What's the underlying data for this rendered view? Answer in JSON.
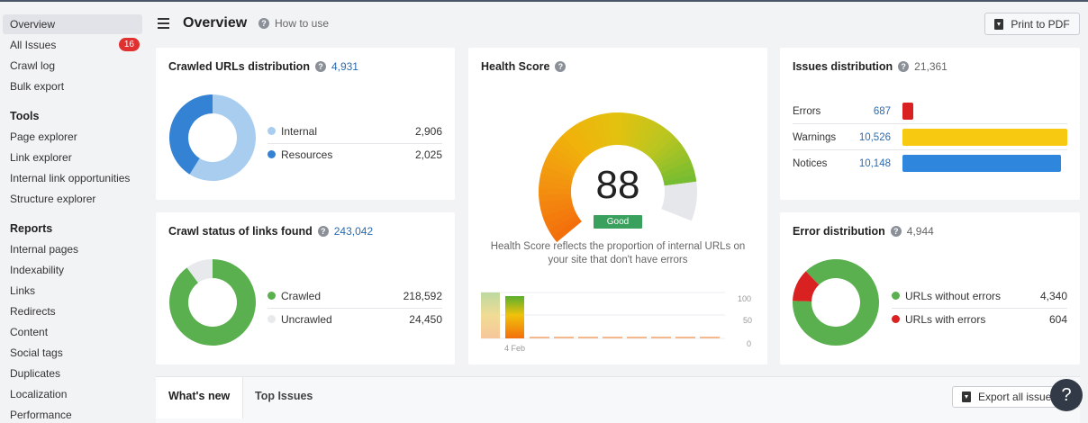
{
  "sidebar": {
    "items_top": [
      {
        "label": "Overview",
        "active": true
      },
      {
        "label": "All Issues",
        "badge": "16"
      },
      {
        "label": "Crawl log"
      },
      {
        "label": "Bulk export"
      }
    ],
    "tools_heading": "Tools",
    "tools": [
      "Page explorer",
      "Link explorer",
      "Internal link opportunities",
      "Structure explorer"
    ],
    "reports_heading": "Reports",
    "reports": [
      "Internal pages",
      "Indexability",
      "Links",
      "Redirects",
      "Content",
      "Social tags",
      "Duplicates",
      "Localization",
      "Performance"
    ]
  },
  "header": {
    "title": "Overview",
    "how_to": "How to use",
    "pdf_button": "Print to PDF"
  },
  "crawled_urls": {
    "title": "Crawled URLs distribution",
    "total": "4,931",
    "rows": [
      {
        "label": "Internal",
        "value": "2,906",
        "color": "#a9cdef"
      },
      {
        "label": "Resources",
        "value": "2,025",
        "color": "#3382d4"
      }
    ],
    "fractions": [
      0.589,
      0.411
    ]
  },
  "crawl_status": {
    "title": "Crawl status of links found",
    "total": "243,042",
    "rows": [
      {
        "label": "Crawled",
        "value": "218,592",
        "color": "#5aaf4e"
      },
      {
        "label": "Uncrawled",
        "value": "24,450",
        "color": "#e8e9ec"
      }
    ],
    "fractions": [
      0.899,
      0.101
    ]
  },
  "health": {
    "title": "Health Score",
    "score": "88",
    "status": "Good",
    "description": "Health Score reflects the proportion of internal URLs on your site that don't have errors",
    "mini_axis": [
      "100",
      "50",
      "0"
    ],
    "mini_date": "4 Feb"
  },
  "issues_dist": {
    "title": "Issues distribution",
    "total": "21,361",
    "rows": [
      {
        "label": "Errors",
        "value": "687",
        "color": "#d92121",
        "fraction": 0.065
      },
      {
        "label": "Warnings",
        "value": "10,526",
        "color": "#f7c911",
        "fraction": 1.0
      },
      {
        "label": "Notices",
        "value": "10,148",
        "color": "#2f86dd",
        "fraction": 0.964
      }
    ]
  },
  "error_dist": {
    "title": "Error distribution",
    "total": "4,944",
    "rows": [
      {
        "label": "URLs without errors",
        "value": "4,340",
        "color": "#5aaf4e"
      },
      {
        "label": "URLs with errors",
        "value": "604",
        "color": "#d92121"
      }
    ],
    "fractions": [
      0.878,
      0.122
    ]
  },
  "bottom": {
    "tabs": [
      "What's new",
      "Top Issues"
    ],
    "export_button": "Export all issues"
  },
  "help": "?"
}
